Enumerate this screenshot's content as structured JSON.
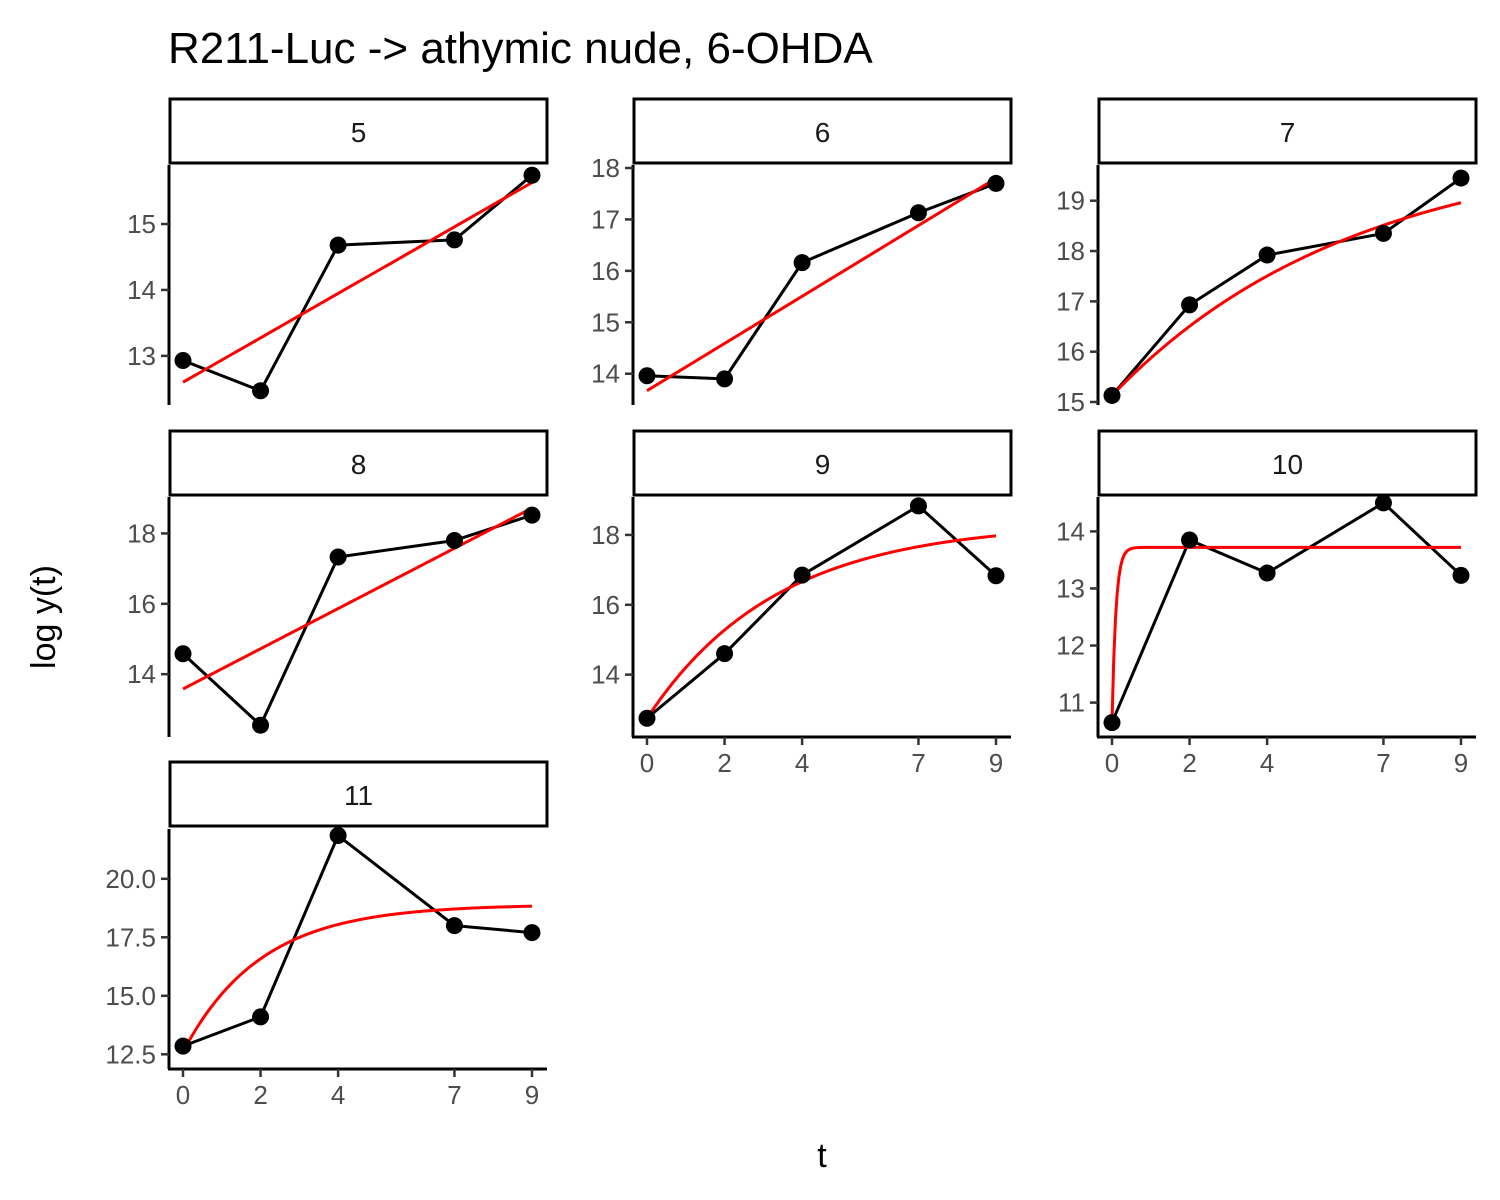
{
  "chart_data": {
    "type": "line",
    "title": "R211-Luc -> athymic nude, 6-OHDA",
    "xlabel": "t",
    "ylabel": "log y(t)",
    "x_ticks": [
      0,
      2,
      4,
      7,
      9
    ],
    "x_tick_labels": [
      "0",
      "2",
      "4",
      "7",
      "9"
    ],
    "colors": {
      "observed": "#000000",
      "fit": "#ff0000"
    },
    "facets": [
      {
        "label": "5",
        "y_ticks": [
          13,
          14,
          15
        ],
        "y_tick_labels": [
          "13",
          "14",
          "15"
        ],
        "ylim": [
          12.3,
          15.85
        ],
        "observed": {
          "x": [
            0,
            2,
            4,
            7,
            9
          ],
          "y": [
            12.93,
            12.47,
            14.68,
            14.76,
            15.74
          ]
        },
        "fit": {
          "model": "linear",
          "start": 12.6,
          "end": 15.63
        }
      },
      {
        "label": "6",
        "y_ticks": [
          14,
          15,
          16,
          17,
          18
        ],
        "y_tick_labels": [
          "14",
          "15",
          "16",
          "17",
          "18"
        ],
        "ylim": [
          13.45,
          18.0
        ],
        "observed": {
          "x": [
            0,
            2,
            4,
            7,
            9
          ],
          "y": [
            13.96,
            13.9,
            16.16,
            17.13,
            17.7
          ]
        },
        "fit": {
          "model": "linear",
          "start": 13.67,
          "end": 17.8
        }
      },
      {
        "label": "7",
        "y_ticks": [
          15,
          16,
          17,
          18,
          19
        ],
        "y_tick_labels": [
          "15",
          "16",
          "17",
          "18",
          "19"
        ],
        "ylim": [
          15.0,
          19.65
        ],
        "observed": {
          "x": [
            0,
            2,
            4,
            7,
            9
          ],
          "y": [
            15.13,
            16.93,
            17.92,
            18.35,
            19.45
          ]
        },
        "fit": {
          "model": "saturating",
          "y0": 15.13,
          "ymax": 20.15,
          "k": 0.16
        }
      },
      {
        "label": "8",
        "y_ticks": [
          14,
          16,
          18
        ],
        "y_tick_labels": [
          "14",
          "16",
          "18"
        ],
        "ylim": [
          12.3,
          18.95
        ],
        "observed": {
          "x": [
            0,
            2,
            4,
            7,
            9
          ],
          "y": [
            14.58,
            12.55,
            17.33,
            17.8,
            18.52
          ]
        },
        "fit": {
          "model": "linear",
          "start": 13.58,
          "end": 18.72
        }
      },
      {
        "label": "9",
        "y_ticks": [
          14,
          16,
          18
        ],
        "y_tick_labels": [
          "14",
          "16",
          "18"
        ],
        "ylim": [
          12.3,
          19.0
        ],
        "observed": {
          "x": [
            0,
            2,
            4,
            7,
            9
          ],
          "y": [
            12.75,
            14.6,
            16.85,
            18.83,
            16.83
          ]
        },
        "fit": {
          "model": "saturating",
          "y0": 12.75,
          "ymax": 18.35,
          "k": 0.3
        }
      },
      {
        "label": "10",
        "y_ticks": [
          11,
          12,
          13,
          14
        ],
        "y_tick_labels": [
          "11",
          "12",
          "13",
          "14"
        ],
        "ylim": [
          10.45,
          14.55
        ],
        "observed": {
          "x": [
            0,
            2,
            4,
            7,
            9
          ],
          "y": [
            10.65,
            13.85,
            13.27,
            14.5,
            13.23
          ]
        },
        "fit": {
          "model": "saturating",
          "y0": 10.65,
          "ymax": 13.72,
          "k": 10.0
        }
      },
      {
        "label": "11",
        "y_ticks": [
          12.5,
          15.0,
          17.5,
          20.0
        ],
        "y_tick_labels": [
          "12.5",
          "15.0",
          "17.5",
          "20.0"
        ],
        "ylim": [
          12.0,
          22.0
        ],
        "observed": {
          "x": [
            0,
            2,
            4,
            7,
            9
          ],
          "y": [
            12.85,
            14.1,
            21.85,
            18.0,
            17.7
          ]
        },
        "fit": {
          "model": "saturating",
          "y0": 12.6,
          "ymax": 18.9,
          "k": 0.5
        }
      }
    ]
  }
}
